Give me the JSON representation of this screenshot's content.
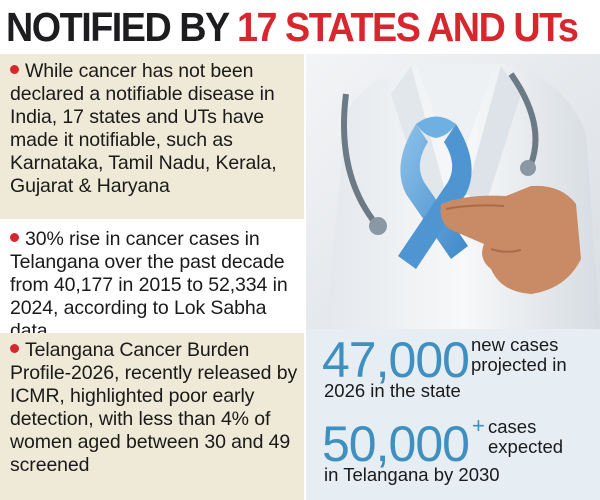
{
  "headline": {
    "part1": "NOTIFIED BY ",
    "part2": "17 STATES AND UTs"
  },
  "bullets": [
    {
      "text": "While cancer has not been declared a notifiable disease in India, 17 states and UTs have made it notifiable, such as Karnataka, Tamil Nadu, Kerala, Gujarat & Haryana"
    },
    {
      "text": "30% rise in cancer cases in Telangana over the past decade from 40,177 in 2015 to 52,334 in 2024, according to Lok Sabha data"
    },
    {
      "text": "Telangana Cancer Burden Profile-2026, recently released by ICMR, highlighted poor early detection, with less than 4% of women aged between 30 and 49 screened"
    }
  ],
  "stats": [
    {
      "number": "47,000",
      "line1": "new cases",
      "line2": "projected in",
      "line3": "2026 in the state"
    },
    {
      "number": "50,000",
      "suffix": "+",
      "line1": "cases",
      "line2": "expected",
      "line3": "in Telangana by 2030"
    }
  ],
  "colors": {
    "accent_red": "#d7262e",
    "stat_blue": "#3f8fbf",
    "panel_beige": "#efe9d7",
    "stats_bg": "#e6eef4"
  },
  "icons": [
    "awareness-ribbon",
    "stethoscope",
    "bullet-dot"
  ]
}
